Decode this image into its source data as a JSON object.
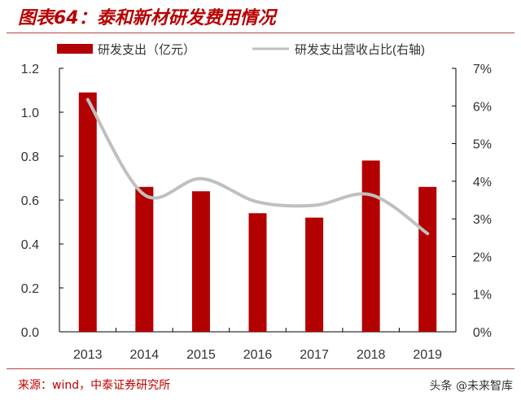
{
  "title": "图表64：泰和新材研发费用情况",
  "source": "来源：wind，中泰证券研究所",
  "watermark": "头条 @未来智库",
  "colors": {
    "bar": "#b30000",
    "line": "#c0c0c0",
    "title": "#b80000"
  },
  "chart_data": {
    "type": "bar",
    "categories": [
      "2013",
      "2014",
      "2015",
      "2016",
      "2017",
      "2018",
      "2019"
    ],
    "series": [
      {
        "name": "研发支出（亿元）",
        "type": "bar",
        "axis": "left",
        "values": [
          1.09,
          0.66,
          0.64,
          0.54,
          0.52,
          0.78,
          0.66
        ]
      },
      {
        "name": "研发支出营收占比(右轴)",
        "type": "line",
        "axis": "right",
        "values": [
          6.17,
          3.64,
          4.07,
          3.45,
          3.36,
          3.64,
          2.61
        ]
      }
    ],
    "left_axis": {
      "ylim": [
        0,
        1.2
      ],
      "ticks": [
        "0.0",
        "0.2",
        "0.4",
        "0.6",
        "0.8",
        "1.0",
        "1.2"
      ]
    },
    "right_axis": {
      "ylim": [
        0,
        7
      ],
      "ticks": [
        "0%",
        "1%",
        "2%",
        "3%",
        "4%",
        "5%",
        "6%",
        "7%"
      ]
    },
    "legend_position": "top",
    "grid": false
  }
}
